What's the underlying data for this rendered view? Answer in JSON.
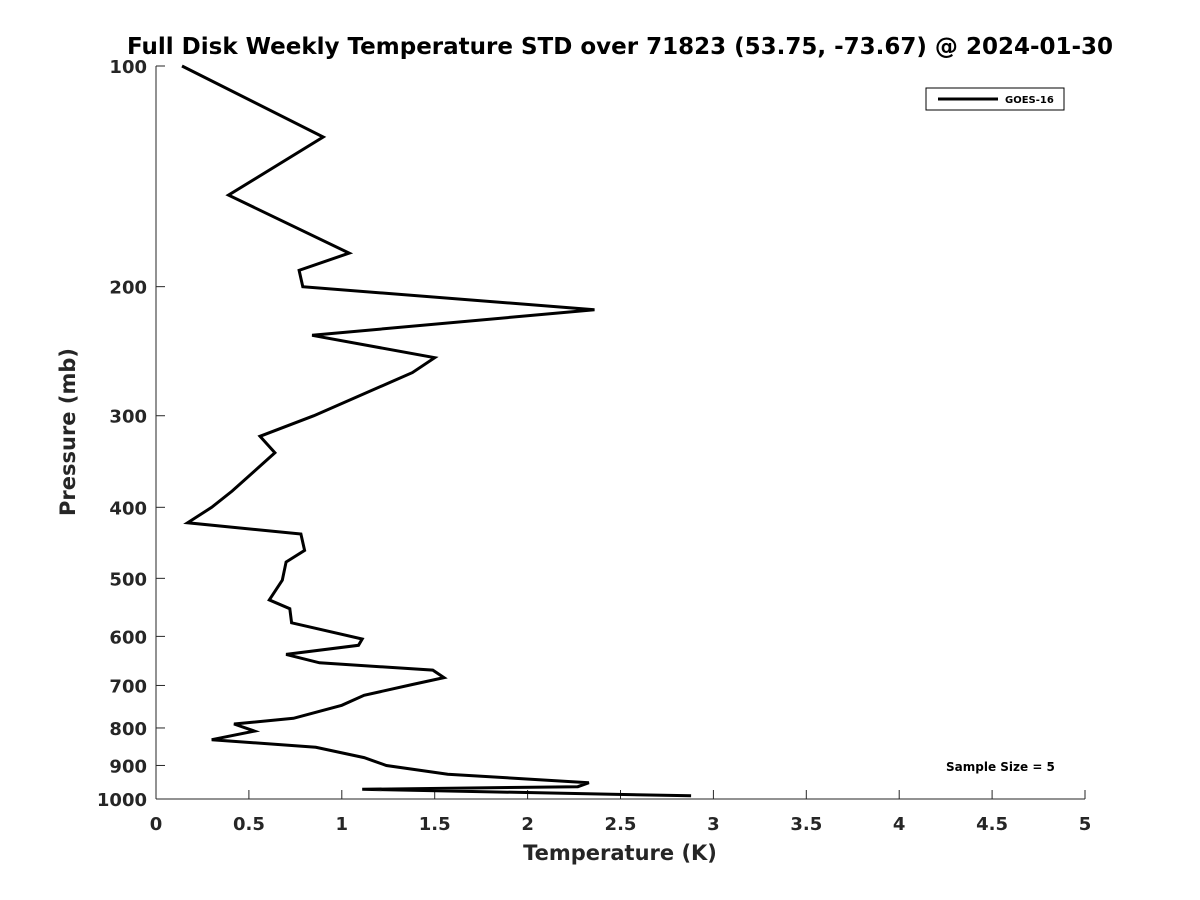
{
  "chart_data": {
    "type": "line",
    "title": "Full Disk Weekly Temperature STD over 71823 (53.75, -73.67) @ 2024-01-30",
    "xlabel": "Temperature (K)",
    "ylabel": "Pressure (mb)",
    "xlim": [
      0,
      5
    ],
    "ylim": [
      100,
      1000
    ],
    "y_scale": "log",
    "y_reversed": true,
    "x_ticks": [
      "0",
      "0.5",
      "1",
      "1.5",
      "2",
      "2.5",
      "3",
      "3.5",
      "4",
      "4.5",
      "5"
    ],
    "y_ticks": [
      "100",
      "200",
      "300",
      "400",
      "500",
      "600",
      "700",
      "800",
      "900",
      "1000"
    ],
    "grid": false,
    "legend": {
      "placement": "top-right",
      "entries": [
        "GOES-16"
      ]
    },
    "annotation": "Sample Size = 5",
    "line_color": "#000000",
    "series": [
      {
        "name": "GOES-16",
        "points": [
          [
            0.14,
            100
          ],
          [
            0.9,
            125
          ],
          [
            0.39,
            150
          ],
          [
            1.04,
            180
          ],
          [
            0.77,
            190
          ],
          [
            0.79,
            200
          ],
          [
            2.36,
            215
          ],
          [
            0.84,
            233
          ],
          [
            1.5,
            250
          ],
          [
            1.38,
            262
          ],
          [
            0.85,
            300
          ],
          [
            0.56,
            320
          ],
          [
            0.64,
            337
          ],
          [
            0.41,
            380
          ],
          [
            0.3,
            400
          ],
          [
            0.17,
            420
          ],
          [
            0.78,
            435
          ],
          [
            0.8,
            458
          ],
          [
            0.7,
            475
          ],
          [
            0.68,
            503
          ],
          [
            0.61,
            535
          ],
          [
            0.72,
            550
          ],
          [
            0.73,
            575
          ],
          [
            1.11,
            605
          ],
          [
            1.09,
            617
          ],
          [
            0.7,
            635
          ],
          [
            0.88,
            652
          ],
          [
            1.49,
            667
          ],
          [
            1.55,
            683
          ],
          [
            1.38,
            698
          ],
          [
            1.12,
            722
          ],
          [
            1.0,
            745
          ],
          [
            0.74,
            776
          ],
          [
            0.42,
            790
          ],
          [
            0.53,
            808
          ],
          [
            0.3,
            830
          ],
          [
            0.86,
            850
          ],
          [
            1.12,
            878
          ],
          [
            1.24,
            900
          ],
          [
            1.57,
            925
          ],
          [
            2.33,
            950
          ],
          [
            2.27,
            962
          ],
          [
            1.11,
            970
          ],
          [
            2.88,
            990
          ]
        ]
      }
    ]
  }
}
